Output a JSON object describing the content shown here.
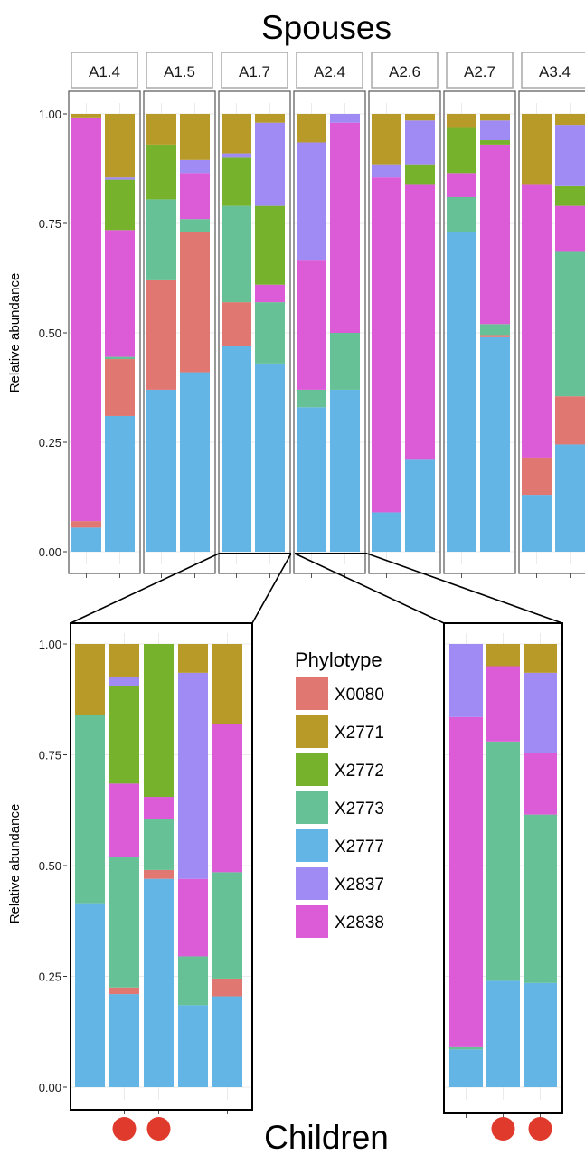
{
  "titles": {
    "top": "Spouses",
    "bottom": "Children"
  },
  "ylabel": "Relative abundance",
  "yticks": [
    "0.00",
    "0.25",
    "0.50",
    "0.75",
    "1.00"
  ],
  "legend": {
    "title": "Phylotype",
    "items": [
      {
        "name": "X0080",
        "color": "#E17771"
      },
      {
        "name": "X2771",
        "color": "#B89A28"
      },
      {
        "name": "X2772",
        "color": "#76B22C"
      },
      {
        "name": "X2773",
        "color": "#67C196"
      },
      {
        "name": "X2777",
        "color": "#63B5E6"
      },
      {
        "name": "X2837",
        "color": "#A08BF5"
      },
      {
        "name": "X2838",
        "color": "#DC5BD6"
      }
    ]
  },
  "chart_data": [
    {
      "type": "bar",
      "stacked": true,
      "title": "Spouses",
      "ylabel": "Relative abundance",
      "ylim": [
        0,
        1
      ],
      "grid": true,
      "stack_order_bottom_to_top": [
        "X2777",
        "X0080",
        "X2773",
        "X2838",
        "X2772",
        "X2837",
        "X2771"
      ],
      "facets": [
        {
          "label": "A1.4",
          "bars": [
            {
              "X2777": 0.055,
              "X0080": 0.015,
              "X2773": 0.0,
              "X2838": 0.92,
              "X2772": 0.002,
              "X2837": 0.0,
              "X2771": 0.008
            },
            {
              "X2777": 0.31,
              "X0080": 0.13,
              "X2773": 0.005,
              "X2838": 0.29,
              "X2772": 0.115,
              "X2837": 0.005,
              "X2771": 0.145
            }
          ]
        },
        {
          "label": "A1.5",
          "bars": [
            {
              "X2777": 0.37,
              "X0080": 0.25,
              "X2773": 0.185,
              "X2838": 0.0,
              "X2772": 0.125,
              "X2837": 0.0,
              "X2771": 0.07
            },
            {
              "X2777": 0.41,
              "X0080": 0.32,
              "X2773": 0.03,
              "X2838": 0.105,
              "X2772": 0.0,
              "X2837": 0.03,
              "X2771": 0.105
            }
          ]
        },
        {
          "label": "A1.7",
          "bars": [
            {
              "X2777": 0.47,
              "X0080": 0.1,
              "X2773": 0.22,
              "X2838": 0.0,
              "X2772": 0.11,
              "X2837": 0.01,
              "X2771": 0.09
            },
            {
              "X2777": 0.43,
              "X0080": 0.0,
              "X2773": 0.14,
              "X2838": 0.04,
              "X2772": 0.18,
              "X2837": 0.19,
              "X2771": 0.02
            }
          ]
        },
        {
          "label": "A2.4",
          "bars": [
            {
              "X2777": 0.33,
              "X0080": 0.0,
              "X2773": 0.04,
              "X2838": 0.295,
              "X2772": 0.0,
              "X2837": 0.27,
              "X2771": 0.065
            },
            {
              "X2777": 0.37,
              "X0080": 0.0,
              "X2773": 0.13,
              "X2838": 0.48,
              "X2772": 0.0,
              "X2837": 0.02,
              "X2771": 0.0
            }
          ]
        },
        {
          "label": "A2.6",
          "bars": [
            {
              "X2777": 0.09,
              "X0080": 0.0,
              "X2773": 0.0,
              "X2838": 0.765,
              "X2772": 0.0,
              "X2837": 0.03,
              "X2771": 0.115
            },
            {
              "X2777": 0.21,
              "X0080": 0.0,
              "X2773": 0.0,
              "X2838": 0.63,
              "X2772": 0.045,
              "X2837": 0.1,
              "X2771": 0.015
            }
          ]
        },
        {
          "label": "A2.7",
          "bars": [
            {
              "X2777": 0.73,
              "X0080": 0.0,
              "X2773": 0.08,
              "X2838": 0.055,
              "X2772": 0.105,
              "X2837": 0.0,
              "X2771": 0.03
            },
            {
              "X2777": 0.49,
              "X0080": 0.005,
              "X2773": 0.025,
              "X2838": 0.41,
              "X2772": 0.01,
              "X2837": 0.045,
              "X2771": 0.015
            }
          ]
        },
        {
          "label": "A3.4",
          "bars": [
            {
              "X2777": 0.13,
              "X0080": 0.085,
              "X2773": 0.0,
              "X2838": 0.625,
              "X2772": 0.0,
              "X2837": 0.0,
              "X2771": 0.16
            },
            {
              "X2777": 0.245,
              "X0080": 0.11,
              "X2773": 0.33,
              "X2838": 0.105,
              "X2772": 0.045,
              "X2837": 0.14,
              "X2771": 0.025
            }
          ]
        }
      ]
    },
    {
      "type": "bar",
      "stacked": true,
      "title": "Children",
      "ylabel": "Relative abundance",
      "ylim": [
        0,
        1
      ],
      "grid": true,
      "stack_order_bottom_to_top": [
        "X2777",
        "X0080",
        "X2773",
        "X2838",
        "X2772",
        "X2837",
        "X2771"
      ],
      "groups": [
        {
          "linked_to": "A1.7",
          "bars": [
            {
              "marked": false,
              "X2777": 0.415,
              "X0080": 0.0,
              "X2773": 0.425,
              "X2838": 0.0,
              "X2772": 0.0,
              "X2837": 0.0,
              "X2771": 0.16
            },
            {
              "marked": true,
              "X2777": 0.21,
              "X0080": 0.015,
              "X2773": 0.295,
              "X2838": 0.165,
              "X2772": 0.22,
              "X2837": 0.02,
              "X2771": 0.075
            },
            {
              "marked": true,
              "X2777": 0.47,
              "X0080": 0.02,
              "X2773": 0.115,
              "X2838": 0.05,
              "X2772": 0.345,
              "X2837": 0.0,
              "X2771": 0.0
            },
            {
              "marked": false,
              "X2777": 0.185,
              "X0080": 0.0,
              "X2773": 0.11,
              "X2838": 0.175,
              "X2772": 0.0,
              "X2837": 0.465,
              "X2771": 0.065
            },
            {
              "marked": false,
              "X2777": 0.205,
              "X0080": 0.04,
              "X2773": 0.24,
              "X2838": 0.335,
              "X2772": 0.0,
              "X2837": 0.0,
              "X2771": 0.18
            }
          ]
        },
        {
          "linked_to": "A2.4",
          "bars": [
            {
              "marked": false,
              "X2777": 0.085,
              "X0080": 0.0,
              "X2773": 0.005,
              "X2838": 0.745,
              "X2772": 0.0,
              "X2837": 0.165,
              "X2771": 0.0
            },
            {
              "marked": true,
              "X2777": 0.24,
              "X0080": 0.0,
              "X2773": 0.54,
              "X2838": 0.17,
              "X2772": 0.0,
              "X2837": 0.0,
              "X2771": 0.05
            },
            {
              "marked": true,
              "X2777": 0.235,
              "X0080": 0.0,
              "X2773": 0.38,
              "X2838": 0.14,
              "X2772": 0.0,
              "X2837": 0.18,
              "X2771": 0.065
            }
          ]
        }
      ]
    }
  ]
}
